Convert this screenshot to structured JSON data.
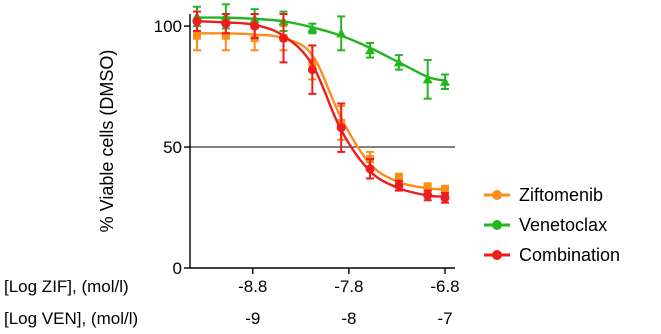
{
  "chart_data": {
    "type": "line",
    "title": "",
    "ylabel": "% Viable cells (DMSO)",
    "ylim": [
      0,
      105
    ],
    "y_ticks": [
      0,
      50,
      100
    ],
    "reference_line": 50,
    "x_axes": [
      {
        "label": "[Log ZIF], (mol/l)",
        "ticks": [
          "-8.8",
          "-7.8",
          "-6.8"
        ],
        "range": [
          -9.38,
          -6.8
        ]
      },
      {
        "label": "[Log VEN], (mol/l)",
        "ticks": [
          "-9",
          "-8",
          "-7"
        ],
        "range": [
          -9.58,
          -7.0
        ]
      }
    ],
    "x": [
      -9.38,
      -9.08,
      -8.78,
      -8.48,
      -8.18,
      -7.88,
      -7.58,
      -7.28,
      -6.98,
      -6.8
    ],
    "series": [
      {
        "name": "Ziftomenib",
        "color": "#ff8c1a",
        "marker": "square",
        "values": [
          96,
          96,
          95,
          95,
          85,
          60,
          45,
          37,
          33,
          32
        ],
        "errors": [
          6,
          6,
          5,
          5,
          7,
          7,
          3,
          2,
          2,
          2
        ],
        "fit": [
          97,
          97,
          96.5,
          95,
          88,
          62,
          43,
          35.5,
          33,
          32.5
        ]
      },
      {
        "name": "Venetoclax",
        "color": "#22b722",
        "marker": "triangle",
        "values": [
          104,
          104,
          103,
          102,
          99,
          97,
          90,
          85,
          78,
          77
        ],
        "errors": [
          4,
          5,
          4,
          4,
          2,
          7,
          3,
          3,
          8,
          3
        ],
        "fit": [
          103.5,
          103.5,
          103,
          102,
          99.5,
          96,
          91,
          85,
          79,
          77.5
        ]
      },
      {
        "name": "Combination",
        "color": "#ee1c1c",
        "marker": "circle",
        "values": [
          102,
          101,
          100,
          95,
          82,
          58,
          41,
          34,
          30,
          29
        ],
        "errors": [
          4,
          4,
          5,
          10,
          10,
          10,
          4,
          2,
          2,
          2
        ],
        "fit": [
          102,
          101.5,
          100.5,
          96,
          84,
          57,
          40,
          33,
          30,
          29.5
        ]
      }
    ],
    "legend_position": "right"
  }
}
